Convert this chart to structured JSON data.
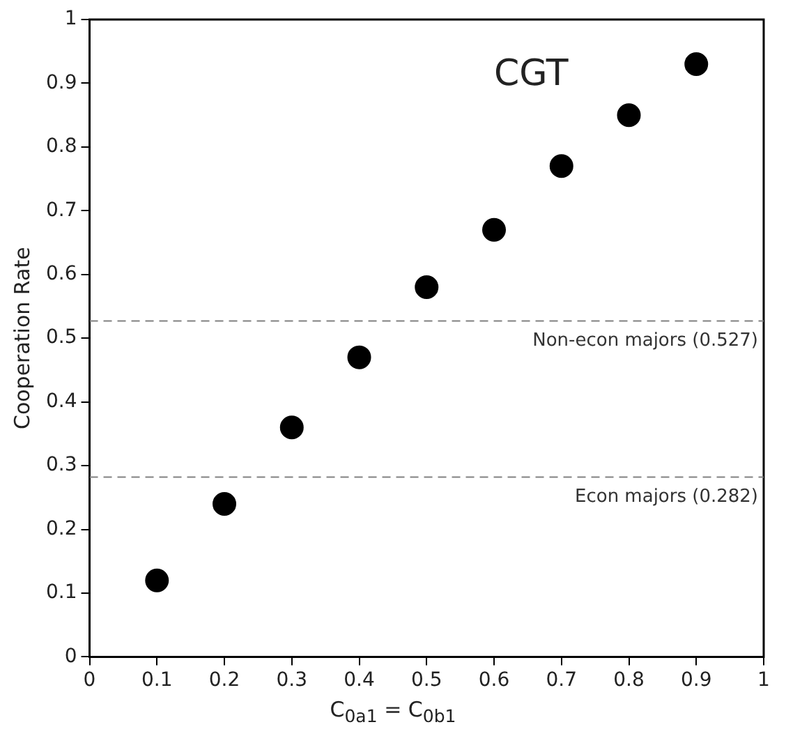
{
  "chart_data": {
    "type": "scatter",
    "xlabel": "C$_{0a1}$ = C$_{0b1}$",
    "ylabel": "Cooperation Rate",
    "x": [
      0.1,
      0.2,
      0.3,
      0.4,
      0.5,
      0.6,
      0.7,
      0.8,
      0.9
    ],
    "series": [
      {
        "color": "#000000",
        "values": [
          0.12,
          0.24,
          0.36,
          0.47,
          0.58,
          0.67,
          0.77,
          0.85,
          0.93
        ]
      }
    ],
    "xlim": [
      0,
      1
    ],
    "xticks": [
      0,
      0.1,
      0.2,
      0.3,
      0.4,
      0.5,
      0.6,
      0.7,
      0.8,
      0.9,
      1
    ],
    "ylim": [
      0,
      1
    ],
    "yticks": [
      0,
      0.1,
      0.2,
      0.3,
      0.4,
      0.5,
      0.6,
      0.7,
      0.8,
      0.9,
      1
    ],
    "ref_lines": [
      {
        "axis": "y",
        "value": 0.527,
        "label": "Non-econ majors (0.527)",
        "color": "#808080",
        "line_style": "dashed"
      },
      {
        "axis": "y",
        "value": 0.282,
        "label": "Econ majors (0.282)",
        "color": "#808080",
        "line_style": "dashed"
      }
    ],
    "annotations": [
      "CGT"
    ],
    "grid": false,
    "legend": false,
    "marker": "circle"
  }
}
